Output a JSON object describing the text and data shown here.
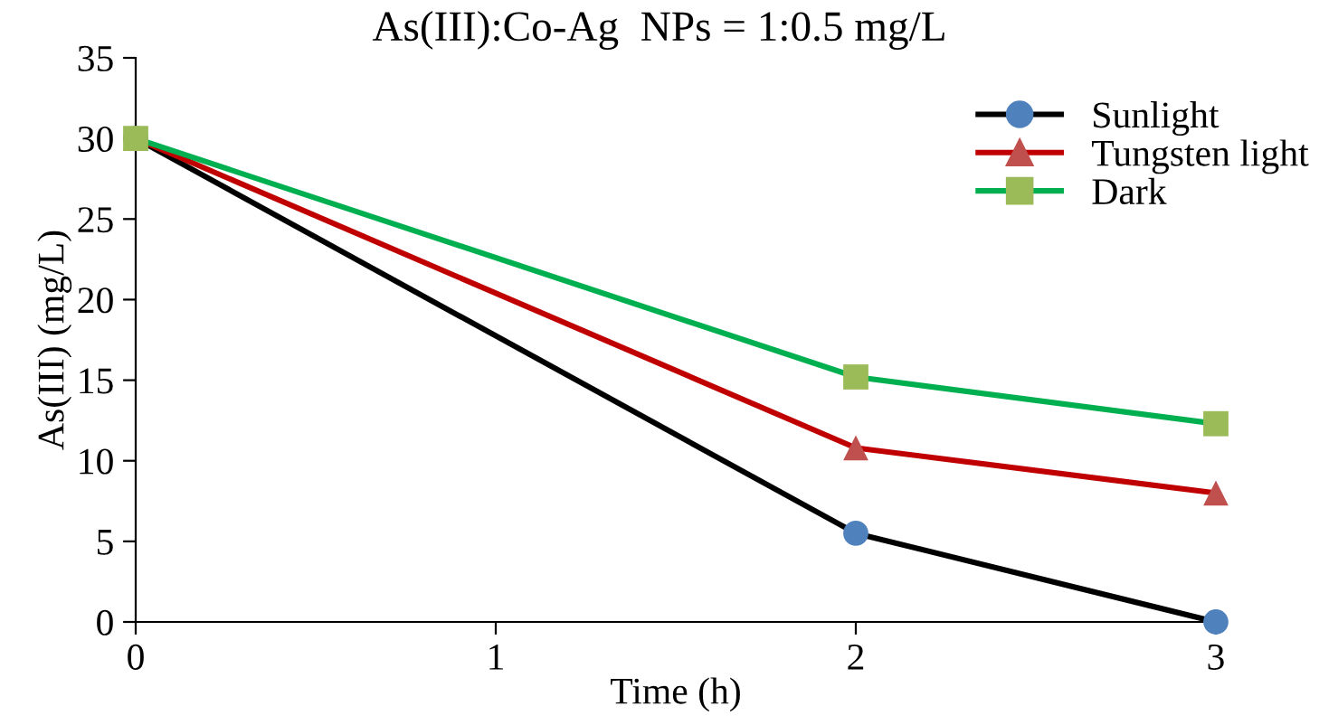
{
  "chart_data": {
    "type": "line",
    "title": "As(III):Co-Ag  NPs = 1:0.5 mg/L",
    "xlabel": "Time (h)",
    "ylabel": "As(III) (mg/L)",
    "x": [
      0,
      2,
      3
    ],
    "xlim": [
      0,
      3
    ],
    "xticks": [
      0,
      1,
      2,
      3
    ],
    "ylim": [
      0,
      35
    ],
    "yticks": [
      0,
      5,
      10,
      15,
      20,
      25,
      30,
      35
    ],
    "grid": false,
    "legend": "top right",
    "series": [
      {
        "name": "Sunlight",
        "color": "#000000",
        "colors": [
          "#4f81bd",
          "#4f81bd",
          "#4f81bd"
        ],
        "marker": "circle",
        "values": [
          30,
          5.5,
          0
        ]
      },
      {
        "name": "Tungsten light",
        "color": "#c00000",
        "colors": [
          "#c0504d",
          "#c0504d",
          "#c0504d"
        ],
        "marker": "triangle",
        "values": [
          30,
          10.8,
          8
        ]
      },
      {
        "name": "Dark",
        "color": "#00b050",
        "colors": [
          "#9bbb59",
          "#9bbb59",
          "#9bbb59"
        ],
        "marker": "square",
        "values": [
          30,
          15.2,
          12.3
        ]
      }
    ]
  }
}
